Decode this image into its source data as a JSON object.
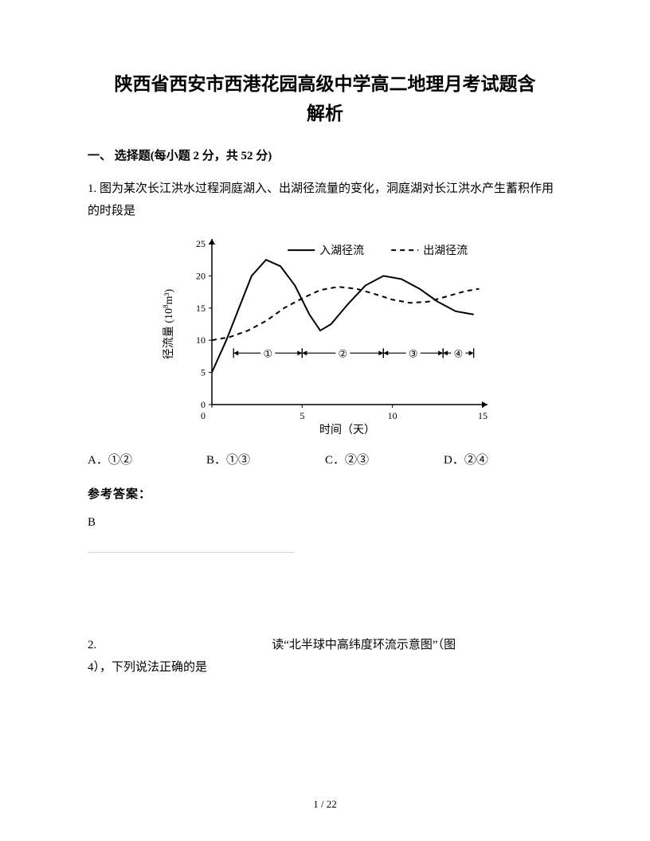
{
  "title_line1": "陕西省西安市西港花园高级中学高二地理月考试题含",
  "title_line2": "解析",
  "section_header": "一、 选择题(每小题 2 分，共 52 分)",
  "q1_text": "1. 图为某次长江洪水过程洞庭湖入、出湖径流量的变化，洞庭湖对长江洪水产生蓄积作用的时段是",
  "chart": {
    "type": "line",
    "background_color": "#ffffff",
    "axis_color": "#000000",
    "grid_color": "#000000",
    "line_width": 2,
    "x_label": "时间（天）",
    "y_label": "径流量（10⁸m³）",
    "y_label_plain": "径流量 (10",
    "y_label_exp": "8",
    "y_label_tail": "m³)",
    "xlim": [
      0,
      15
    ],
    "ylim": [
      0,
      25
    ],
    "xticks": [
      0,
      5,
      10,
      15
    ],
    "yticks": [
      0,
      5,
      10,
      15,
      20,
      25
    ],
    "legend": {
      "items": [
        {
          "label": "入湖径流",
          "style": "solid"
        },
        {
          "label": "出湖径流",
          "style": "dashed"
        }
      ],
      "fontsize": 14
    },
    "series": [
      {
        "name": "入湖径流",
        "style": "solid",
        "color": "#000000",
        "points": [
          [
            0,
            5
          ],
          [
            0.8,
            10
          ],
          [
            1.5,
            15
          ],
          [
            2.2,
            20
          ],
          [
            3.0,
            22.5
          ],
          [
            3.8,
            21.5
          ],
          [
            4.6,
            18.5
          ],
          [
            5.4,
            14
          ],
          [
            6.0,
            11.5
          ],
          [
            6.6,
            12.5
          ],
          [
            7.5,
            15.5
          ],
          [
            8.5,
            18.5
          ],
          [
            9.5,
            20
          ],
          [
            10.5,
            19.5
          ],
          [
            11.5,
            18
          ],
          [
            12.5,
            16
          ],
          [
            13.5,
            14.5
          ],
          [
            14.5,
            14
          ]
        ]
      },
      {
        "name": "出湖径流",
        "style": "dashed",
        "color": "#000000",
        "points": [
          [
            0,
            10
          ],
          [
            1,
            10.5
          ],
          [
            2,
            11.5
          ],
          [
            3,
            13
          ],
          [
            4,
            15
          ],
          [
            5,
            16.5
          ],
          [
            6,
            17.8
          ],
          [
            7,
            18.3
          ],
          [
            8,
            18
          ],
          [
            9,
            17.2
          ],
          [
            10,
            16.3
          ],
          [
            11,
            15.8
          ],
          [
            12,
            16
          ],
          [
            13,
            16.8
          ],
          [
            14,
            17.6
          ],
          [
            14.8,
            18
          ]
        ]
      }
    ],
    "regions": [
      {
        "label": "①",
        "x_from": 1.2,
        "x_to": 5.0
      },
      {
        "label": "②",
        "x_from": 5.0,
        "x_to": 9.5
      },
      {
        "label": "③",
        "x_from": 9.5,
        "x_to": 12.8
      },
      {
        "label": "④",
        "x_from": 12.8,
        "x_to": 14.5
      }
    ],
    "region_marker_y": 8,
    "axis_fontsize": 12,
    "label_fontsize": 14
  },
  "options": {
    "A": "A．①②",
    "B": "B．①③",
    "C": "C．②③",
    "D": "D．②④"
  },
  "answer_label": "参考答案：",
  "answer_value": "B",
  "q2_prefix": "2.",
  "q2_text": "读“北半球中高纬度环流示意图”（图",
  "q2_cont": "4），下列说法正确的是",
  "footer": "1 / 22"
}
